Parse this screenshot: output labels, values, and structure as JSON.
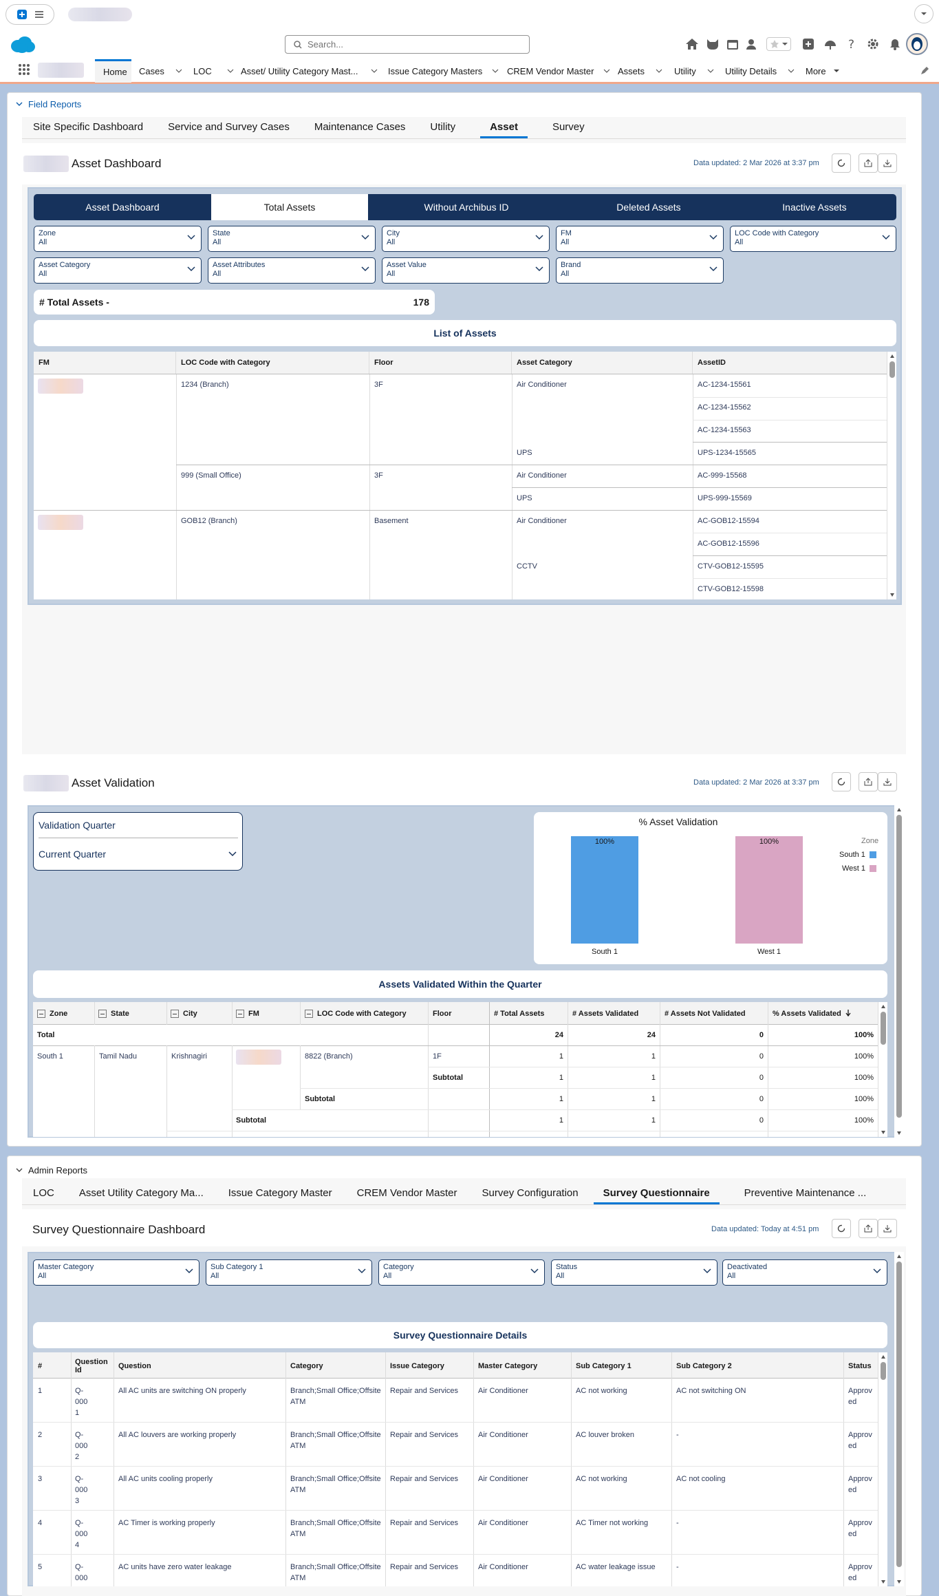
{
  "header": {
    "search_placeholder": "Search...",
    "nav": [
      "Home",
      "Cases",
      "LOC",
      "Asset/ Utility Category Mast...",
      "Issue Category Masters",
      "CREM Vendor Master",
      "Assets",
      "Utility",
      "Utility Details",
      "More"
    ]
  },
  "field_reports": {
    "section_label": "Field Reports",
    "tabs": [
      "Site Specific Dashboard",
      "Service and Survey Cases",
      "Maintenance Cases",
      "Utility",
      "Asset",
      "Survey"
    ],
    "active_tab": "Asset",
    "asset_dashboard": {
      "title": "Asset Dashboard",
      "updated": "Data updated: 2 Mar 2026 at 3:37 pm",
      "seg_tabs": [
        "Asset Dashboard",
        "Total Assets",
        "Without Archibus ID",
        "Deleted Assets",
        "Inactive Assets"
      ],
      "selected_seg": "Total Assets",
      "filters": [
        {
          "label": "Zone",
          "value": "All"
        },
        {
          "label": "State",
          "value": "All"
        },
        {
          "label": "City",
          "value": "All"
        },
        {
          "label": "FM",
          "value": "All"
        },
        {
          "label": "LOC Code with Category",
          "value": "All"
        },
        {
          "label": "Asset Category",
          "value": "All"
        },
        {
          "label": "Asset Attributes",
          "value": "All"
        },
        {
          "label": "Asset Value",
          "value": "All"
        },
        {
          "label": "Brand",
          "value": "All"
        }
      ],
      "total_label": "# Total Assets -",
      "total_value": "178",
      "list_title": "List of Assets",
      "columns": [
        "FM",
        "LOC Code with Category",
        "Floor",
        "Asset Category",
        "AssetID"
      ],
      "loc": [
        "1234 (Branch)",
        "999 (Small Office)",
        "GOB12 (Branch)"
      ],
      "floors": [
        "3F",
        "3F",
        "Basement"
      ],
      "categories": [
        "Air Conditioner",
        "UPS",
        "Air Conditioner",
        "UPS",
        "Air Conditioner",
        "CCTV"
      ],
      "asset_ids": [
        "AC-1234-15561",
        "AC-1234-15562",
        "AC-1234-15563",
        "UPS-1234-15565",
        "AC-999-15568",
        "UPS-999-15569",
        "AC-GOB12-15594",
        "AC-GOB12-15596",
        "CTV-GOB12-15595",
        "CTV-GOB12-15598"
      ]
    },
    "asset_validation": {
      "title": "Asset Validation",
      "updated": "Data updated: 2 Mar 2026 at 3:37 pm",
      "quarter_label": "Validation Quarter",
      "quarter_value": "Current Quarter",
      "chart_title": "% Asset Validation",
      "legend_title": "Zone",
      "table_title": "Assets Validated Within the Quarter",
      "columns": [
        "Zone",
        "State",
        "City",
        "FM",
        "LOC Code with Category",
        "Floor",
        "# Total Assets",
        "# Assets Validated",
        "# Assets Not Validated",
        "% Assets Validated"
      ],
      "total_row": {
        "label": "Total",
        "total": "24",
        "validated": "24",
        "not_validated": "0",
        "pct": "100%"
      },
      "row": {
        "zone": "South 1",
        "state": "Tamil Nadu",
        "city": "Krishnagiri",
        "loc": "8822 (Branch)",
        "floor": "1F"
      },
      "subtotal_label": "Subtotal",
      "vals": {
        "total": "1",
        "validated": "1",
        "not_validated": "0",
        "pct": "100%"
      }
    }
  },
  "chart_data": {
    "type": "bar",
    "title": "% Asset Validation",
    "categories": [
      "South 1",
      "West 1"
    ],
    "values": [
      100,
      100
    ],
    "data_labels": [
      "100%",
      "100%"
    ],
    "legend": {
      "title": "Zone",
      "entries": [
        "South 1",
        "West 1"
      ],
      "placement": "right"
    },
    "colors": [
      "#4f9de3",
      "#d9a5c3"
    ],
    "ylim": [
      0,
      100
    ]
  },
  "admin_reports": {
    "section_label": "Admin Reports",
    "tabs": [
      "LOC",
      "Asset Utility Category Ma...",
      "Issue Category Master",
      "CREM Vendor Master",
      "Survey Configuration",
      "Survey Questionnaire",
      "Preventive Maintenance ..."
    ],
    "active_tab": "Survey Questionnaire",
    "dashboard_title": "Survey Questionnaire Dashboard",
    "updated": "Data updated: Today at 4:51 pm",
    "filters": [
      {
        "label": "Master Category",
        "value": "All"
      },
      {
        "label": "Sub Category 1",
        "value": "All"
      },
      {
        "label": "Category",
        "value": "All"
      },
      {
        "label": "Status",
        "value": "All"
      },
      {
        "label": "Deactivated",
        "value": "All"
      }
    ],
    "table_title": "Survey Questionnaire Details",
    "columns": [
      "#",
      "Question Id",
      "Question",
      "Category",
      "Issue Category",
      "Master Category",
      "Sub Category 1",
      "Sub Category 2",
      "Status"
    ],
    "rows": [
      {
        "n": "1",
        "qid": "Q-000 1",
        "q": "All AC units are switching ON properly",
        "cat": "Branch;Small Office;Offsite ATM",
        "issue": "Repair and Services",
        "master": "Air Conditioner",
        "sub1": "AC not working",
        "sub2": "AC not switching ON",
        "status": "Approv ed"
      },
      {
        "n": "2",
        "qid": "Q-000 2",
        "q": "All AC louvers are working properly",
        "cat": "Branch;Small Office;Offsite ATM",
        "issue": "Repair and Services",
        "master": "Air Conditioner",
        "sub1": "AC louver broken",
        "sub2": "-",
        "status": "Approv ed"
      },
      {
        "n": "3",
        "qid": "Q-000 3",
        "q": "All AC units cooling properly",
        "cat": "Branch;Small Office;Offsite ATM",
        "issue": "Repair and Services",
        "master": "Air Conditioner",
        "sub1": "AC not working",
        "sub2": "AC not cooling",
        "status": "Approv ed"
      },
      {
        "n": "4",
        "qid": "Q-000 4",
        "q": "AC Timer is working properly",
        "cat": "Branch;Small Office;Offsite ATM",
        "issue": "Repair and Services",
        "master": "Air Conditioner",
        "sub1": "AC Timer not working",
        "sub2": "-",
        "status": "Approv ed"
      },
      {
        "n": "5",
        "qid": "Q-000",
        "q": "AC units have zero water leakage",
        "cat": "Branch;Small Office;Offsite ATM",
        "issue": "Repair and Services",
        "master": "Air Conditioner",
        "sub1": "AC water leakage issue",
        "sub2": "-",
        "status": "Approv ed"
      }
    ]
  }
}
